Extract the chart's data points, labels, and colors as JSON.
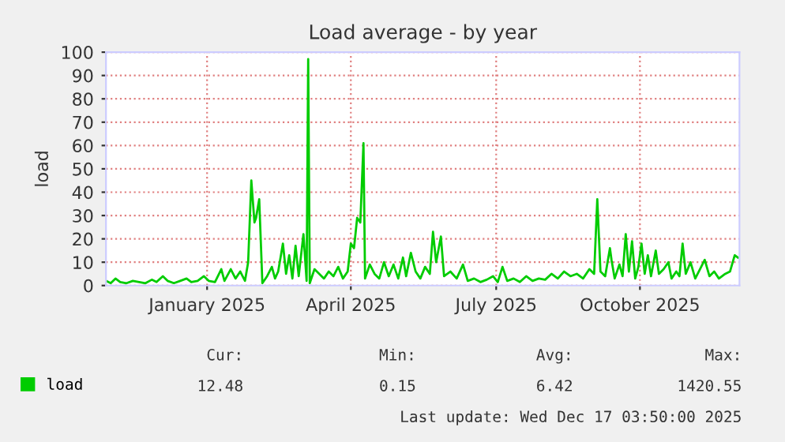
{
  "chart_data": {
    "type": "line",
    "title": "Load average - by year",
    "ylabel": "load",
    "x": [
      "2024-11-12",
      "2024-11-15",
      "2024-11-18",
      "2024-11-21",
      "2024-11-25",
      "2024-11-29",
      "2024-12-03",
      "2024-12-07",
      "2024-12-11",
      "2024-12-14",
      "2024-12-18",
      "2024-12-21",
      "2024-12-25",
      "2024-12-29",
      "2025-01-02",
      "2025-01-05",
      "2025-01-09",
      "2025-01-13",
      "2025-01-16",
      "2025-01-20",
      "2025-01-24",
      "2025-01-26",
      "2025-01-30",
      "2025-02-02",
      "2025-02-05",
      "2025-02-08",
      "2025-02-10",
      "2025-02-12",
      "2025-02-14",
      "2025-02-15",
      "2025-02-17",
      "2025-02-19",
      "2025-02-22",
      "2025-02-25",
      "2025-02-27",
      "2025-03-01",
      "2025-03-04",
      "2025-03-06",
      "2025-03-08",
      "2025-03-10",
      "2025-03-12",
      "2025-03-14",
      "2025-03-17",
      "2025-03-19",
      "2025-03-20",
      "2025-03-21",
      "2025-03-24",
      "2025-03-27",
      "2025-03-30",
      "2025-04-02",
      "2025-04-05",
      "2025-04-08",
      "2025-04-11",
      "2025-04-14",
      "2025-04-16",
      "2025-04-18",
      "2025-04-20",
      "2025-04-22",
      "2025-04-24",
      "2025-04-25",
      "2025-04-28",
      "2025-05-01",
      "2025-05-04",
      "2025-05-07",
      "2025-05-10",
      "2025-05-13",
      "2025-05-16",
      "2025-05-19",
      "2025-05-21",
      "2025-05-24",
      "2025-05-27",
      "2025-05-30",
      "2025-06-02",
      "2025-06-05",
      "2025-06-07",
      "2025-06-09",
      "2025-06-12",
      "2025-06-14",
      "2025-06-18",
      "2025-06-22",
      "2025-06-26",
      "2025-06-29",
      "2025-07-03",
      "2025-07-07",
      "2025-07-11",
      "2025-07-15",
      "2025-07-18",
      "2025-07-21",
      "2025-07-24",
      "2025-07-28",
      "2025-08-01",
      "2025-08-05",
      "2025-08-09",
      "2025-08-13",
      "2025-08-17",
      "2025-08-21",
      "2025-08-25",
      "2025-08-29",
      "2025-09-02",
      "2025-09-06",
      "2025-09-10",
      "2025-09-14",
      "2025-09-17",
      "2025-09-19",
      "2025-09-21",
      "2025-09-24",
      "2025-09-27",
      "2025-09-28",
      "2025-09-30",
      "2025-10-03",
      "2025-10-05",
      "2025-10-07",
      "2025-10-09",
      "2025-10-11",
      "2025-10-13",
      "2025-10-15",
      "2025-10-17",
      "2025-10-19",
      "2025-10-21",
      "2025-10-23",
      "2025-10-26",
      "2025-10-28",
      "2025-10-31",
      "2025-11-03",
      "2025-11-05",
      "2025-11-08",
      "2025-11-10",
      "2025-11-12",
      "2025-11-14",
      "2025-11-17",
      "2025-11-20",
      "2025-11-23",
      "2025-11-26",
      "2025-11-29",
      "2025-12-02",
      "2025-12-05",
      "2025-12-09",
      "2025-12-12",
      "2025-12-15",
      "2025-12-17"
    ],
    "series": [
      {
        "name": "load",
        "color": "#00cc00",
        "values": [
          2,
          1,
          3,
          1.5,
          1,
          2,
          1.5,
          1,
          2.5,
          1.5,
          4,
          2,
          1,
          2,
          3,
          1.5,
          2,
          4,
          2,
          1.5,
          7,
          2,
          7,
          3,
          6,
          2,
          10,
          45,
          27,
          29,
          37,
          1,
          4,
          8,
          3,
          6,
          18,
          5,
          13,
          3,
          17,
          4,
          22,
          2,
          97,
          1,
          7,
          5,
          3,
          6,
          4,
          8,
          3,
          6,
          18,
          16,
          29,
          27,
          61,
          3,
          9,
          5,
          3,
          10,
          4,
          9,
          3,
          12,
          4,
          14,
          6,
          3,
          8,
          5,
          23,
          10,
          21,
          4,
          6,
          3,
          9,
          2,
          3,
          1.5,
          2.5,
          4,
          1.5,
          8,
          2,
          3,
          1.5,
          4,
          2,
          3,
          2.5,
          5,
          3,
          6,
          4,
          5,
          3,
          7,
          5,
          37,
          6,
          4,
          16,
          11,
          3,
          9,
          4,
          22,
          6,
          19,
          3,
          8,
          18,
          5,
          13,
          4,
          15,
          5,
          7,
          10,
          3,
          6,
          4,
          18,
          5,
          10,
          3,
          7,
          11,
          4,
          6,
          3,
          5,
          6,
          13,
          12
        ]
      }
    ],
    "xlim": [
      "2024-11-12",
      "2025-12-18"
    ],
    "xticks": [
      {
        "value": "2025-01-15",
        "label": "January 2025"
      },
      {
        "value": "2025-04-16",
        "label": "April 2025"
      },
      {
        "value": "2025-07-17",
        "label": "July 2025"
      },
      {
        "value": "2025-10-16",
        "label": "October 2025"
      }
    ],
    "ylim": [
      0,
      100
    ],
    "yticks": [
      0,
      10,
      20,
      30,
      40,
      50,
      60,
      70,
      80,
      90,
      100
    ],
    "grid": true,
    "legend": "bottom",
    "marker": "none",
    "line_style": "solid",
    "annotations": [
      "Cur:",
      "Min:",
      "Avg:",
      "Max:",
      "12.48",
      "0.15",
      "6.42",
      "1420.55",
      "Last update: Wed Dec 17 03:50:00 2025"
    ]
  }
}
